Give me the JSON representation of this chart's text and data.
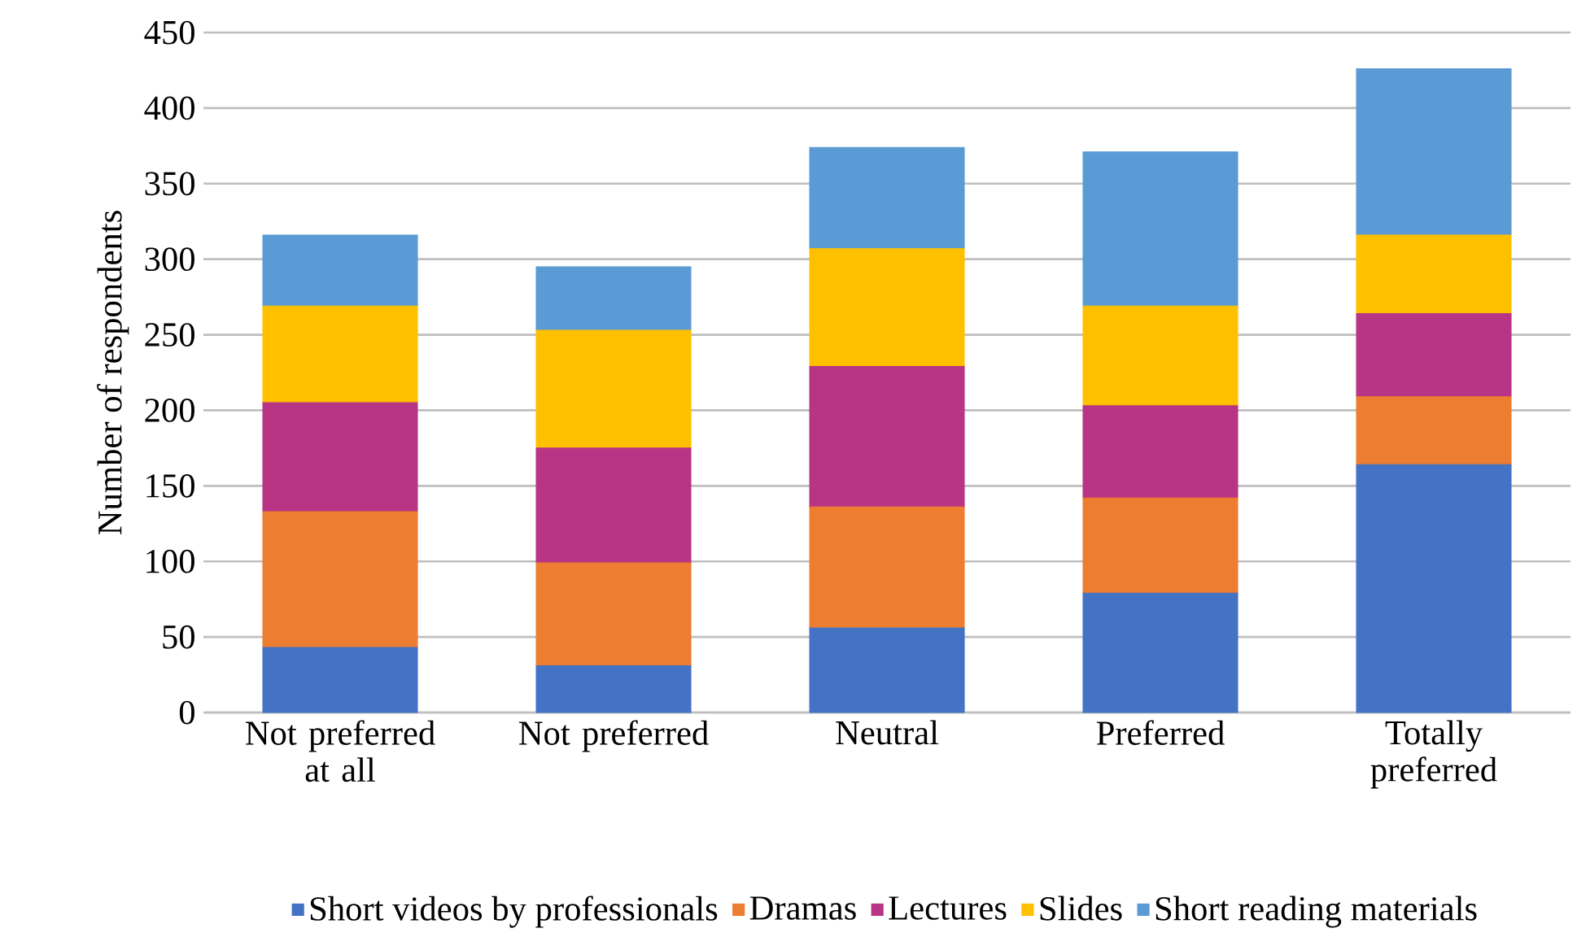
{
  "chart_data": {
    "type": "bar",
    "stacked": true,
    "ylabel": "Number of respondents",
    "categories": [
      "Not preferred at all",
      "Not preferred",
      "Neutral",
      "Preferred",
      "Totally preferred"
    ],
    "series": [
      {
        "name": "Short videos by professionals",
        "color": "#4472c4",
        "values": [
          43,
          31,
          56,
          79,
          164
        ]
      },
      {
        "name": "Dramas",
        "color": "#ed7d31",
        "values": [
          90,
          68,
          80,
          63,
          45
        ]
      },
      {
        "name": "Lectures",
        "color": "#b83585",
        "values": [
          72,
          76,
          93,
          61,
          55
        ]
      },
      {
        "name": "Slides",
        "color": "#ffc000",
        "values": [
          64,
          78,
          78,
          66,
          52
        ]
      },
      {
        "name": "Short reading materials",
        "color": "#5b9bd5",
        "values": [
          47,
          42,
          67,
          102,
          110
        ]
      }
    ],
    "ylim": [
      0,
      450
    ],
    "yticks": [
      0,
      50,
      100,
      150,
      200,
      250,
      300,
      350,
      400,
      450
    ],
    "grid": "y",
    "legend": "bottom"
  }
}
